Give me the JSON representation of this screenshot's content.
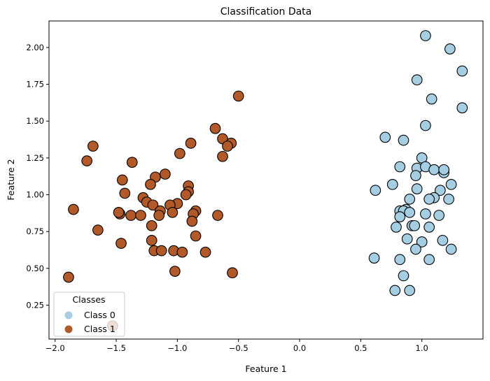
{
  "chart_data": {
    "type": "scatter",
    "title": "Classification Data",
    "xlabel": "Feature 1",
    "ylabel": "Feature 2",
    "xlim": [
      -2.05,
      1.5
    ],
    "ylim": [
      0.02,
      2.18
    ],
    "xticks": [
      -2.0,
      -1.5,
      -1.0,
      -0.5,
      0.0,
      0.5,
      1.0
    ],
    "xtick_labels": [
      "−2.0",
      "−1.5",
      "−1.0",
      "−0.5",
      "0.0",
      "0.5",
      "1.0"
    ],
    "yticks": [
      0.25,
      0.5,
      0.75,
      1.0,
      1.25,
      1.5,
      1.75,
      2.0
    ],
    "ytick_labels": [
      "0.25",
      "0.50",
      "0.75",
      "1.00",
      "1.25",
      "1.50",
      "1.75",
      "2.00"
    ],
    "grid": false,
    "legend": {
      "title": "Classes",
      "position": "bottom-left",
      "entries": [
        "Class 0",
        "Class 1"
      ]
    },
    "series": [
      {
        "name": "Class 0",
        "color": "#a6cee3",
        "points": [
          [
            1.03,
            2.08
          ],
          [
            1.23,
            1.99
          ],
          [
            1.33,
            1.84
          ],
          [
            0.96,
            1.78
          ],
          [
            1.08,
            1.65
          ],
          [
            1.33,
            1.59
          ],
          [
            1.03,
            1.47
          ],
          [
            0.7,
            1.39
          ],
          [
            0.85,
            1.37
          ],
          [
            1.0,
            1.25
          ],
          [
            0.82,
            1.19
          ],
          [
            0.96,
            1.18
          ],
          [
            1.03,
            1.19
          ],
          [
            1.1,
            1.17
          ],
          [
            1.18,
            1.15
          ],
          [
            1.18,
            1.17
          ],
          [
            0.95,
            1.13
          ],
          [
            0.76,
            1.07
          ],
          [
            1.24,
            1.07
          ],
          [
            0.62,
            1.03
          ],
          [
            0.96,
            1.04
          ],
          [
            1.15,
            1.03
          ],
          [
            1.1,
            0.98
          ],
          [
            1.06,
            0.97
          ],
          [
            0.9,
            0.97
          ],
          [
            1.22,
            0.97
          ],
          [
            0.87,
            0.9
          ],
          [
            0.82,
            0.89
          ],
          [
            0.85,
            0.89
          ],
          [
            0.9,
            0.88
          ],
          [
            1.03,
            0.87
          ],
          [
            0.82,
            0.85
          ],
          [
            1.14,
            0.86
          ],
          [
            0.92,
            0.79
          ],
          [
            0.94,
            0.79
          ],
          [
            0.79,
            0.78
          ],
          [
            1.06,
            0.78
          ],
          [
            0.88,
            0.7
          ],
          [
            1.0,
            0.68
          ],
          [
            1.17,
            0.69
          ],
          [
            0.95,
            0.63
          ],
          [
            1.24,
            0.63
          ],
          [
            0.61,
            0.57
          ],
          [
            0.82,
            0.56
          ],
          [
            1.06,
            0.56
          ],
          [
            0.85,
            0.45
          ],
          [
            0.78,
            0.35
          ],
          [
            0.9,
            0.35
          ]
        ]
      },
      {
        "name": "Class 1",
        "color": "#b15928",
        "points": [
          [
            -0.5,
            1.67
          ],
          [
            -0.69,
            1.45
          ],
          [
            -0.63,
            1.38
          ],
          [
            -0.56,
            1.35
          ],
          [
            -0.59,
            1.33
          ],
          [
            -1.69,
            1.33
          ],
          [
            -0.89,
            1.35
          ],
          [
            -0.98,
            1.28
          ],
          [
            -0.63,
            1.26
          ],
          [
            -1.74,
            1.23
          ],
          [
            -1.37,
            1.22
          ],
          [
            -1.1,
            1.14
          ],
          [
            -1.18,
            1.12
          ],
          [
            -1.45,
            1.1
          ],
          [
            -1.22,
            1.07
          ],
          [
            -0.91,
            1.06
          ],
          [
            -0.91,
            1.02
          ],
          [
            -0.93,
            1.0
          ],
          [
            -1.43,
            1.01
          ],
          [
            -1.28,
            0.98
          ],
          [
            -1.25,
            0.95
          ],
          [
            -1.0,
            0.94
          ],
          [
            -1.06,
            0.93
          ],
          [
            -1.2,
            0.93
          ],
          [
            -1.85,
            0.9
          ],
          [
            -0.85,
            0.89
          ],
          [
            -1.14,
            0.89
          ],
          [
            -1.04,
            0.88
          ],
          [
            -0.87,
            0.87
          ],
          [
            -1.47,
            0.87
          ],
          [
            -1.38,
            0.86
          ],
          [
            -1.48,
            0.88
          ],
          [
            -1.3,
            0.86
          ],
          [
            -1.15,
            0.86
          ],
          [
            -0.67,
            0.86
          ],
          [
            -0.88,
            0.82
          ],
          [
            -1.21,
            0.79
          ],
          [
            -1.65,
            0.76
          ],
          [
            -0.85,
            0.72
          ],
          [
            -1.21,
            0.69
          ],
          [
            -1.46,
            0.67
          ],
          [
            -1.19,
            0.62
          ],
          [
            -1.13,
            0.62
          ],
          [
            -1.03,
            0.62
          ],
          [
            -0.96,
            0.61
          ],
          [
            -0.77,
            0.61
          ],
          [
            -1.02,
            0.48
          ],
          [
            -0.55,
            0.47
          ],
          [
            -1.89,
            0.44
          ],
          [
            -1.53,
            0.11
          ]
        ]
      }
    ]
  }
}
